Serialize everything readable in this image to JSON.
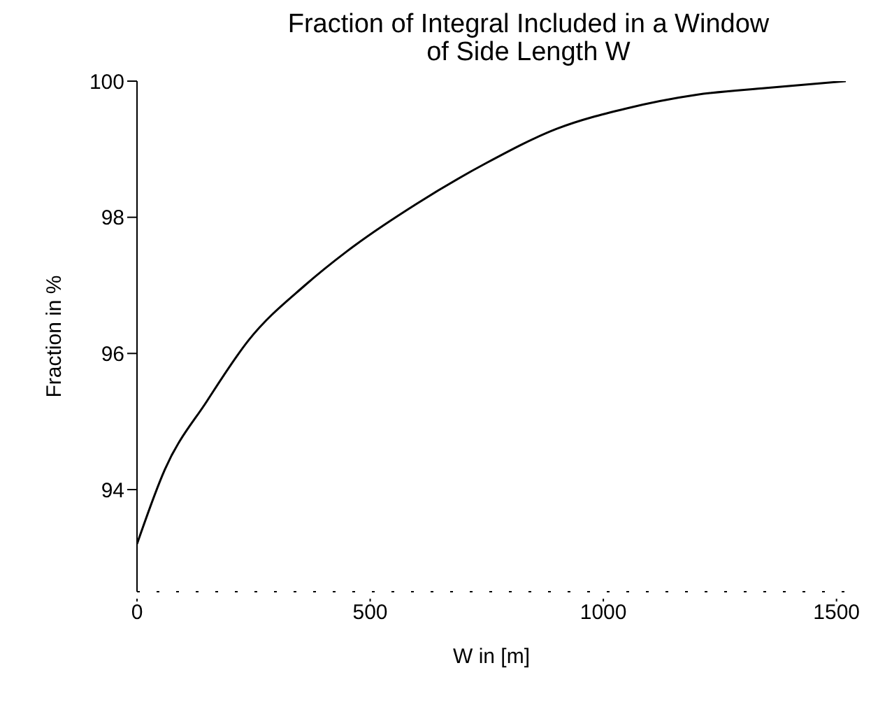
{
  "chart_data": {
    "type": "line",
    "title": "Fraction of Integral Included in a Window of Side Length W",
    "xlabel": "W in [m]",
    "ylabel": "Fraction in %",
    "x": [
      0,
      60,
      150,
      240,
      360,
      450,
      600,
      750,
      900,
      1050,
      1200,
      1350,
      1520
    ],
    "series": [
      {
        "color": "#000000",
        "values": [
          93.2,
          94.3,
          95.3,
          96.2,
          97.0,
          97.5,
          98.2,
          98.8,
          99.3,
          99.6,
          99.8,
          99.9,
          100.0
        ]
      }
    ],
    "xlim": [
      0,
      1520
    ],
    "xticks": [
      0,
      500,
      1000,
      1500
    ],
    "ylim": [
      92.5,
      100
    ],
    "yticks": [
      94,
      96,
      98,
      100
    ],
    "marker": "none",
    "line_style": "solid"
  }
}
